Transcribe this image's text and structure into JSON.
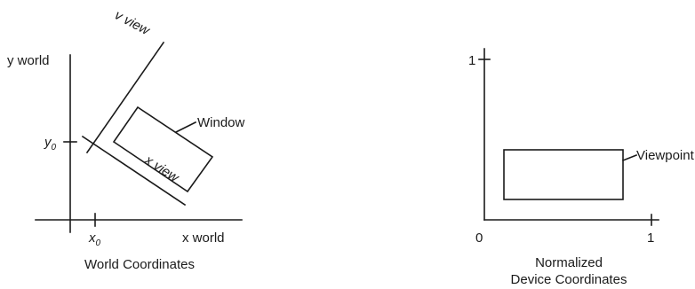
{
  "world": {
    "y_axis_label": "y world",
    "x_axis_label": "x world",
    "y0_label": "y",
    "y0_sub": "0",
    "x0_label": "x",
    "x0_sub": "0",
    "v_view_label": "v view",
    "x_view_label": "x view",
    "window_label": "Window",
    "caption": "World Coordinates"
  },
  "ndc": {
    "y_tick_label": "1",
    "x_tick_label": "1",
    "origin_label": "0",
    "viewport_label": "Viewpoint",
    "caption_line1": "Normalized",
    "caption_line2": "Device Coordinates"
  }
}
